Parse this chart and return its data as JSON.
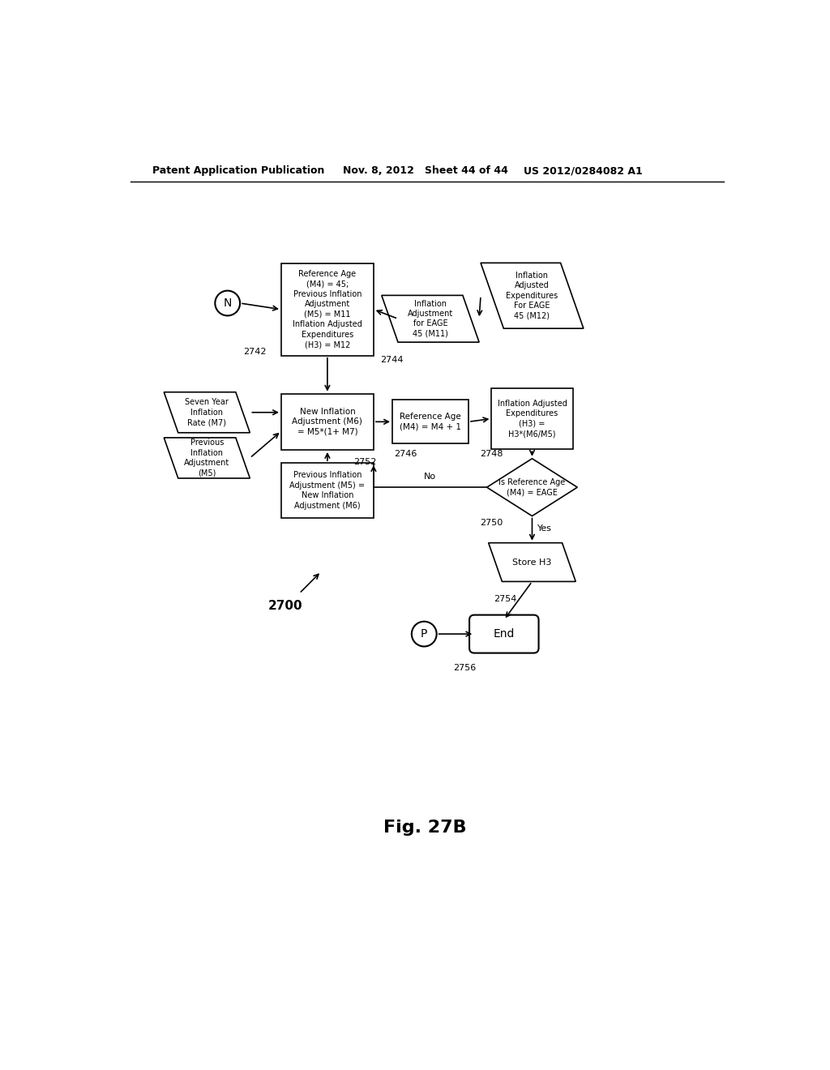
{
  "title": "Fig. 27B",
  "header_left": "Patent Application Publication",
  "header_mid": "Nov. 8, 2012   Sheet 44 of 44",
  "header_right": "US 2012/0284082 A1",
  "background_color": "#ffffff",
  "text_color": "#000000",
  "font_size_header": 9,
  "font_size_node": 7.5,
  "font_size_label": 7.5,
  "font_size_title": 16
}
